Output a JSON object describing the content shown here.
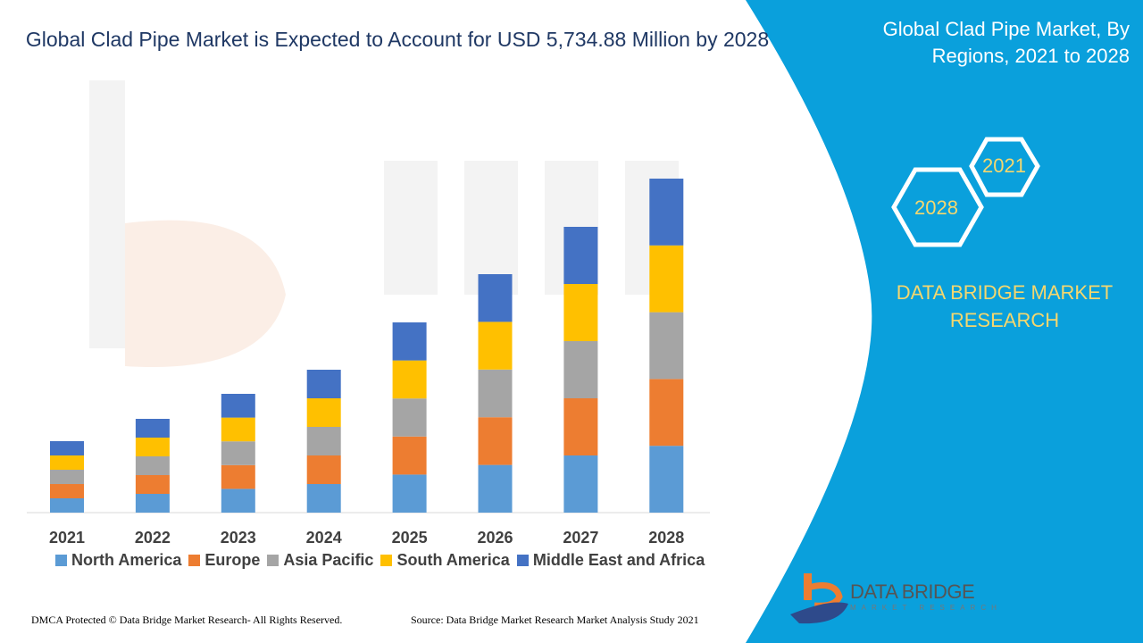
{
  "title": "Global Clad Pipe Market is Expected to Account for USD 5,734.88 Million by 2028",
  "side_title": "Global Clad Pipe Market, By Regions, 2021 to 2028",
  "hex_years": [
    "2021",
    "2028"
  ],
  "brand": "DATA BRIDGE MARKET RESEARCH",
  "logo": {
    "name": "DATA BRIDGE",
    "sub": "MARKET RESEARCH"
  },
  "footer": {
    "left": "DMCA Protected © Data Bridge Market Research- All Rights Reserved.",
    "right": "Source: Data Bridge Market Research Market Analysis Study 2021"
  },
  "colors": {
    "panel": "#0aa0dc",
    "title": "#1f3864",
    "gold": "#f5d76e"
  },
  "chart_data": {
    "type": "bar",
    "stacked": true,
    "categories": [
      "2021",
      "2022",
      "2023",
      "2024",
      "2025",
      "2026",
      "2027",
      "2028"
    ],
    "series": [
      {
        "name": "North America",
        "color": "#5b9bd5",
        "values": [
          16,
          21,
          26.6,
          32,
          42.6,
          53.4,
          64,
          74.8
        ]
      },
      {
        "name": "Europe",
        "color": "#ed7d31",
        "values": [
          16,
          21,
          26.6,
          32,
          42.6,
          53.4,
          64,
          74.8
        ]
      },
      {
        "name": "Asia Pacific",
        "color": "#a5a5a5",
        "values": [
          16,
          21,
          26.6,
          32,
          42.6,
          53.4,
          64,
          74.8
        ]
      },
      {
        "name": "South America",
        "color": "#ffc000",
        "values": [
          16,
          21,
          26.6,
          32,
          42.6,
          53.4,
          64,
          74.8
        ]
      },
      {
        "name": "Middle East and Africa",
        "color": "#4472c4",
        "values": [
          16,
          21,
          26.6,
          32,
          42.6,
          53.4,
          64,
          74.8
        ]
      }
    ],
    "ylim": [
      0,
      374
    ],
    "grid": false,
    "legend": "bottom"
  }
}
